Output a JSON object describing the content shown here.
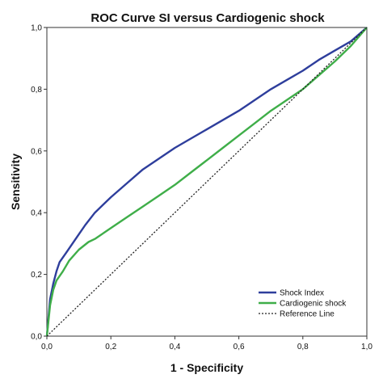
{
  "chart_data": {
    "type": "line",
    "title": "ROC Curve SI versus Cardiogenic shock",
    "xlabel": "1 - Specificity",
    "ylabel": "Sensitivity",
    "xlim": [
      0,
      1
    ],
    "ylim": [
      0,
      1
    ],
    "xticks": [
      "0,0",
      "0,2",
      "0,4",
      "0,6",
      "0,8",
      "1,0"
    ],
    "yticks": [
      "0,0",
      "0,2",
      "0,4",
      "0,6",
      "0,8",
      "1,0"
    ],
    "grid": false,
    "legend_position": "bottom-right",
    "series": [
      {
        "name": "Shock Index",
        "color": "#2e3e9c",
        "style": "solid",
        "x": [
          0.0,
          0.005,
          0.01,
          0.02,
          0.03,
          0.04,
          0.06,
          0.08,
          0.1,
          0.12,
          0.15,
          0.2,
          0.25,
          0.3,
          0.35,
          0.4,
          0.45,
          0.5,
          0.55,
          0.6,
          0.65,
          0.7,
          0.75,
          0.8,
          0.85,
          0.9,
          0.95,
          1.0
        ],
        "y": [
          0.0,
          0.06,
          0.12,
          0.17,
          0.21,
          0.24,
          0.27,
          0.3,
          0.33,
          0.36,
          0.4,
          0.45,
          0.495,
          0.54,
          0.575,
          0.61,
          0.64,
          0.67,
          0.7,
          0.73,
          0.765,
          0.8,
          0.83,
          0.86,
          0.895,
          0.925,
          0.955,
          1.0
        ]
      },
      {
        "name": "Cardiogenic shock",
        "color": "#3fae49",
        "style": "solid",
        "x": [
          0.0,
          0.005,
          0.01,
          0.02,
          0.03,
          0.05,
          0.07,
          0.1,
          0.13,
          0.15,
          0.2,
          0.25,
          0.3,
          0.35,
          0.4,
          0.45,
          0.5,
          0.55,
          0.6,
          0.65,
          0.7,
          0.75,
          0.8,
          0.85,
          0.9,
          0.95,
          1.0
        ],
        "y": [
          0.0,
          0.05,
          0.1,
          0.15,
          0.18,
          0.21,
          0.245,
          0.28,
          0.305,
          0.315,
          0.35,
          0.385,
          0.42,
          0.455,
          0.49,
          0.53,
          0.57,
          0.61,
          0.65,
          0.69,
          0.73,
          0.765,
          0.8,
          0.845,
          0.89,
          0.94,
          1.0
        ]
      },
      {
        "name": "Reference Line",
        "color": "#222222",
        "style": "dotted",
        "x": [
          0.0,
          1.0
        ],
        "y": [
          0.0,
          1.0
        ]
      }
    ]
  }
}
